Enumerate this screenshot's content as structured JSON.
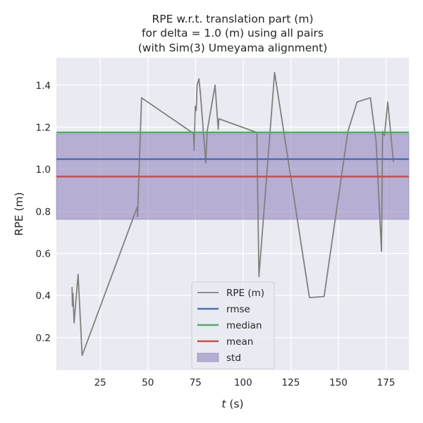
{
  "chart_data": {
    "type": "line",
    "title_lines": [
      "RPE w.r.t. translation part (m)",
      "for delta = 1.0 (m) using all pairs",
      "(with Sim(3) Umeyama alignment)"
    ],
    "xlabel_italic": "t",
    "xlabel_rest": " (s)",
    "ylabel": "RPE (m)",
    "xlim": [
      2,
      187
    ],
    "ylim": [
      0.045,
      1.53
    ],
    "xticks": [
      25,
      50,
      75,
      100,
      125,
      150,
      175
    ],
    "xtick_labels": [
      "25",
      "50",
      "75",
      "100",
      "125",
      "150",
      "175"
    ],
    "yticks": [
      0.2,
      0.4,
      0.6,
      0.8,
      1.0,
      1.2,
      1.4
    ],
    "ytick_labels": [
      "0.2",
      "0.4",
      "0.6",
      "0.8",
      "1.0",
      "1.2",
      "1.4"
    ],
    "grid": true,
    "legend_position": "lower center",
    "series": [
      {
        "name": "RPE (m)",
        "color": "#808080",
        "x": [
          10.2,
          10.4,
          10.7,
          11.3,
          13.4,
          15.5,
          44.4,
          44.6,
          46.7,
          74.0,
          74.3,
          74.9,
          75.4,
          75.8,
          76.8,
          77.6,
          80.4,
          81.1,
          85.3,
          86.9,
          87.3,
          107.2,
          108.3,
          116.5,
          134.8,
          142.5,
          155.0,
          159.8,
          166.8,
          169.8,
          172.6,
          173.2,
          174.2,
          175.9,
          178.9
        ],
        "y": [
          0.44,
          0.35,
          0.41,
          0.27,
          0.5,
          0.115,
          0.82,
          0.775,
          1.34,
          1.17,
          1.09,
          1.3,
          1.28,
          1.4,
          1.43,
          1.36,
          1.03,
          1.18,
          1.4,
          1.19,
          1.24,
          1.175,
          0.49,
          1.46,
          0.39,
          0.395,
          1.18,
          1.32,
          1.34,
          1.13,
          0.61,
          1.18,
          1.16,
          1.32,
          1.035
        ]
      },
      {
        "name": "rmse",
        "color": "#4c72b0",
        "value": 1.048
      },
      {
        "name": "median",
        "color": "#55a868",
        "value": 1.175
      },
      {
        "name": "mean",
        "color": "#c44e52",
        "value": 0.965
      },
      {
        "name": "std",
        "color": "#8172b3",
        "band": [
          0.762,
          1.168
        ]
      }
    ]
  }
}
